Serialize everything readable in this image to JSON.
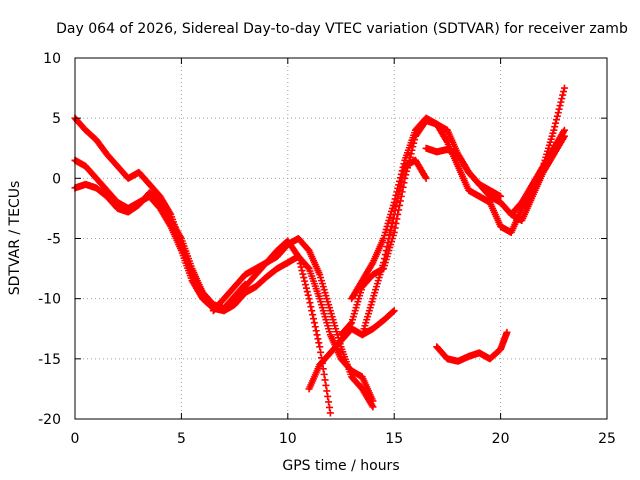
{
  "chart_data": {
    "type": "scatter",
    "title": "Day 064 of 2026, Sidereal Day-to-day VTEC variation (SDTVAR) for receiver zamb",
    "xlabel": "GPS time / hours",
    "ylabel": "SDTVAR / TECUs",
    "xlim": [
      0,
      25
    ],
    "ylim": [
      -20,
      10
    ],
    "xticks": [
      0,
      5,
      10,
      15,
      20,
      25
    ],
    "yticks": [
      -20,
      -15,
      -10,
      -5,
      0,
      5,
      10
    ],
    "grid": true,
    "marker": "+",
    "color": "#ff0000",
    "series": [
      {
        "name": "s1",
        "x": [
          0.0,
          0.5,
          1.0,
          1.5,
          2.0,
          2.5,
          3.0,
          3.5,
          4.0,
          4.5,
          5.0,
          5.5,
          6.0,
          6.5,
          7.0,
          7.5,
          8.0
        ],
        "y": [
          5.0,
          4.0,
          3.2,
          2.0,
          1.0,
          0.0,
          0.5,
          -0.5,
          -1.5,
          -3.0,
          -5.5,
          -8.0,
          -9.5,
          -10.5,
          -10.8,
          -9.8,
          -8.8
        ]
      },
      {
        "name": "s2",
        "x": [
          0.0,
          0.5,
          1.0,
          1.5,
          2.0,
          2.5,
          3.0,
          3.5,
          4.0,
          4.5,
          5.0,
          5.5,
          6.0,
          6.5,
          7.0
        ],
        "y": [
          1.5,
          1.0,
          0.0,
          -1.0,
          -2.0,
          -2.5,
          -2.0,
          -1.5,
          -2.5,
          -4.0,
          -6.0,
          -8.5,
          -10.0,
          -10.8,
          -11.0
        ]
      },
      {
        "name": "s3",
        "x": [
          0.0,
          0.5,
          1.0,
          1.5,
          2.0,
          2.5,
          3.0,
          3.5,
          4.0,
          4.5,
          5.0,
          5.5,
          6.0,
          6.5,
          7.0,
          7.5,
          8.0,
          8.5,
          9.0,
          9.5,
          10.0,
          10.5,
          11.0,
          11.5,
          12.0
        ],
        "y": [
          -0.8,
          -0.5,
          -0.8,
          -1.5,
          -2.5,
          -2.8,
          -2.2,
          -1.2,
          -2.0,
          -3.5,
          -5.0,
          -7.5,
          -9.5,
          -10.5,
          -10.8,
          -10.2,
          -9.0,
          -8.0,
          -7.0,
          -6.0,
          -5.2,
          -6.5,
          -10.0,
          -14.0,
          -19.5
        ]
      },
      {
        "name": "s4",
        "x": [
          6.5,
          7.0,
          7.5,
          8.0,
          8.5,
          9.0,
          9.5,
          10.0,
          10.5,
          11.0,
          11.5,
          12.0,
          12.5,
          13.0,
          13.5,
          14.0
        ],
        "y": [
          -11.0,
          -10.0,
          -9.0,
          -8.0,
          -7.5,
          -7.0,
          -6.5,
          -5.5,
          -5.0,
          -6.0,
          -8.0,
          -11.0,
          -14.0,
          -16.5,
          -17.5,
          -19.0
        ]
      },
      {
        "name": "s5",
        "x": [
          7.0,
          7.5,
          8.0,
          8.5,
          9.0,
          9.5,
          10.0,
          10.5,
          11.0,
          11.5,
          12.0,
          12.5,
          13.0,
          13.5,
          14.0
        ],
        "y": [
          -11.0,
          -10.5,
          -9.5,
          -9.0,
          -8.2,
          -7.5,
          -7.0,
          -6.5,
          -7.5,
          -10.0,
          -13.0,
          -15.0,
          -16.0,
          -16.5,
          -18.5
        ]
      },
      {
        "name": "s6",
        "x": [
          11.0,
          11.5,
          12.0,
          12.5,
          13.0,
          13.5,
          14.0,
          14.5,
          15.0
        ],
        "y": [
          -17.5,
          -15.5,
          -14.5,
          -13.5,
          -12.5,
          -13.0,
          -12.5,
          -11.8,
          -11.0
        ]
      },
      {
        "name": "s7",
        "x": [
          12.5,
          13.0,
          13.5,
          14.0,
          14.5,
          15.0,
          15.5,
          16.0,
          16.5,
          17.0,
          17.5,
          18.0,
          18.5,
          19.0,
          19.5,
          20.0,
          20.5,
          21.0,
          21.5,
          22.0,
          22.5,
          23.0
        ],
        "y": [
          -13.0,
          -12.0,
          -9.0,
          -8.0,
          -7.5,
          -4.5,
          0.0,
          3.5,
          4.8,
          4.5,
          3.0,
          1.0,
          -1.0,
          -1.5,
          -2.0,
          -4.0,
          -4.5,
          -2.5,
          -1.0,
          1.0,
          4.0,
          7.5
        ]
      },
      {
        "name": "s8",
        "x": [
          13.0,
          13.5,
          14.0,
          14.5,
          15.0,
          15.5,
          16.0,
          16.5,
          17.0,
          17.5,
          18.0,
          18.5,
          19.0,
          19.5,
          20.0,
          20.5,
          21.0,
          21.5,
          22.0,
          22.5,
          23.0
        ],
        "y": [
          -10.0,
          -8.5,
          -7.0,
          -5.0,
          -2.0,
          1.5,
          4.0,
          5.0,
          4.5,
          4.0,
          2.0,
          0.5,
          -0.5,
          -1.5,
          -2.0,
          -3.0,
          -2.0,
          -0.5,
          1.0,
          2.5,
          4.0
        ]
      },
      {
        "name": "s9",
        "x": [
          13.5,
          14.0,
          14.5,
          15.0,
          15.5,
          16.0,
          16.5
        ],
        "y": [
          -13.0,
          -10.0,
          -7.0,
          -3.0,
          1.0,
          1.5,
          0.0
        ]
      },
      {
        "name": "s10",
        "x": [
          16.5,
          17.0,
          17.5,
          18.0,
          18.5,
          19.0,
          19.5,
          20.0
        ],
        "y": [
          2.5,
          2.2,
          2.4,
          2.0,
          0.5,
          -0.5,
          -1.0,
          -1.5
        ]
      },
      {
        "name": "s11",
        "x": [
          17.0,
          17.5,
          18.0,
          18.5,
          19.0,
          19.5,
          20.0,
          20.3
        ],
        "y": [
          -14.0,
          -15.0,
          -15.2,
          -14.8,
          -14.5,
          -15.0,
          -14.2,
          -12.8
        ]
      },
      {
        "name": "s12",
        "x": [
          20.5,
          21.0,
          21.5,
          22.0,
          22.5,
          23.0
        ],
        "y": [
          -3.0,
          -3.5,
          -1.5,
          0.5,
          2.0,
          3.5
        ]
      }
    ]
  }
}
